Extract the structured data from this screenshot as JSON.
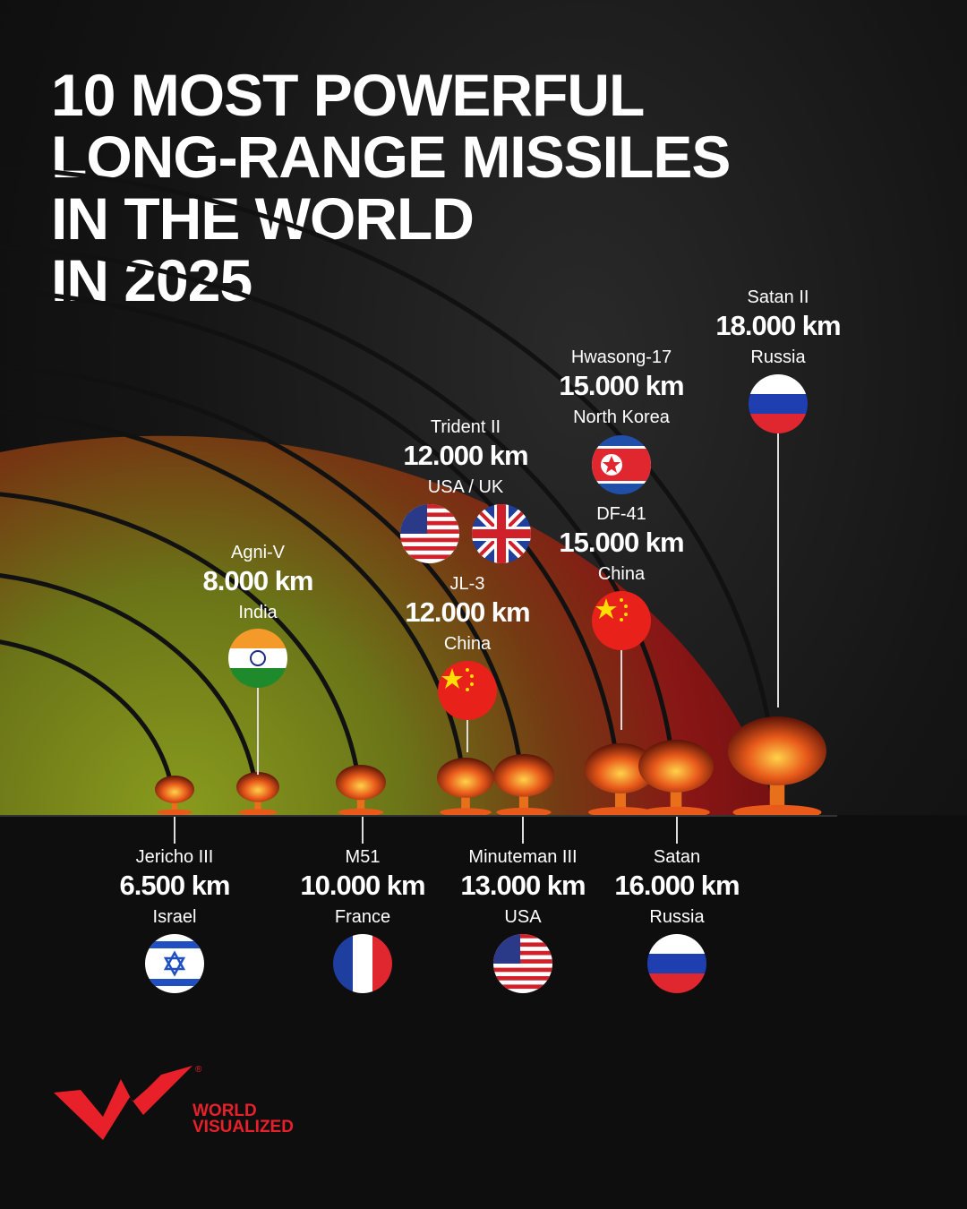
{
  "title_lines": [
    "10 MOST POWERFUL",
    "LONG-RANGE MISSILES",
    "IN THE WORLD",
    "IN 2025"
  ],
  "missiles": [
    {
      "name": "Jericho III",
      "range": "6.500 km",
      "country": "Israel",
      "flags": [
        "israel"
      ]
    },
    {
      "name": "Agni-V",
      "range": "8.000 km",
      "country": "India",
      "flags": [
        "india"
      ]
    },
    {
      "name": "M51",
      "range": "10.000 km",
      "country": "France",
      "flags": [
        "france"
      ]
    },
    {
      "name": "JL-3",
      "range": "12.000 km",
      "country": "China",
      "flags": [
        "china"
      ]
    },
    {
      "name": "Trident II",
      "range": "12.000 km",
      "country": "USA / UK",
      "flags": [
        "usa",
        "uk"
      ]
    },
    {
      "name": "Minuteman III",
      "range": "13.000 km",
      "country": "USA",
      "flags": [
        "usa"
      ]
    },
    {
      "name": "DF-41",
      "range": "15.000 km",
      "country": "China",
      "flags": [
        "china"
      ]
    },
    {
      "name": "Hwasong-17",
      "range": "15.000 km",
      "country": "North Korea",
      "flags": [
        "north-korea"
      ]
    },
    {
      "name": "Satan",
      "range": "16.000 km",
      "country": "Russia",
      "flags": [
        "russia"
      ]
    },
    {
      "name": "Satan II",
      "range": "18.000 km",
      "country": "Russia",
      "flags": [
        "russia"
      ]
    }
  ],
  "brand": {
    "line1": "WORLD",
    "line2": "VISUALIZED",
    "mark": "®",
    "color": "#e8202a"
  },
  "colors": {
    "outer_arc": "#8e1515",
    "inner_glow": "#7a8a1a"
  }
}
